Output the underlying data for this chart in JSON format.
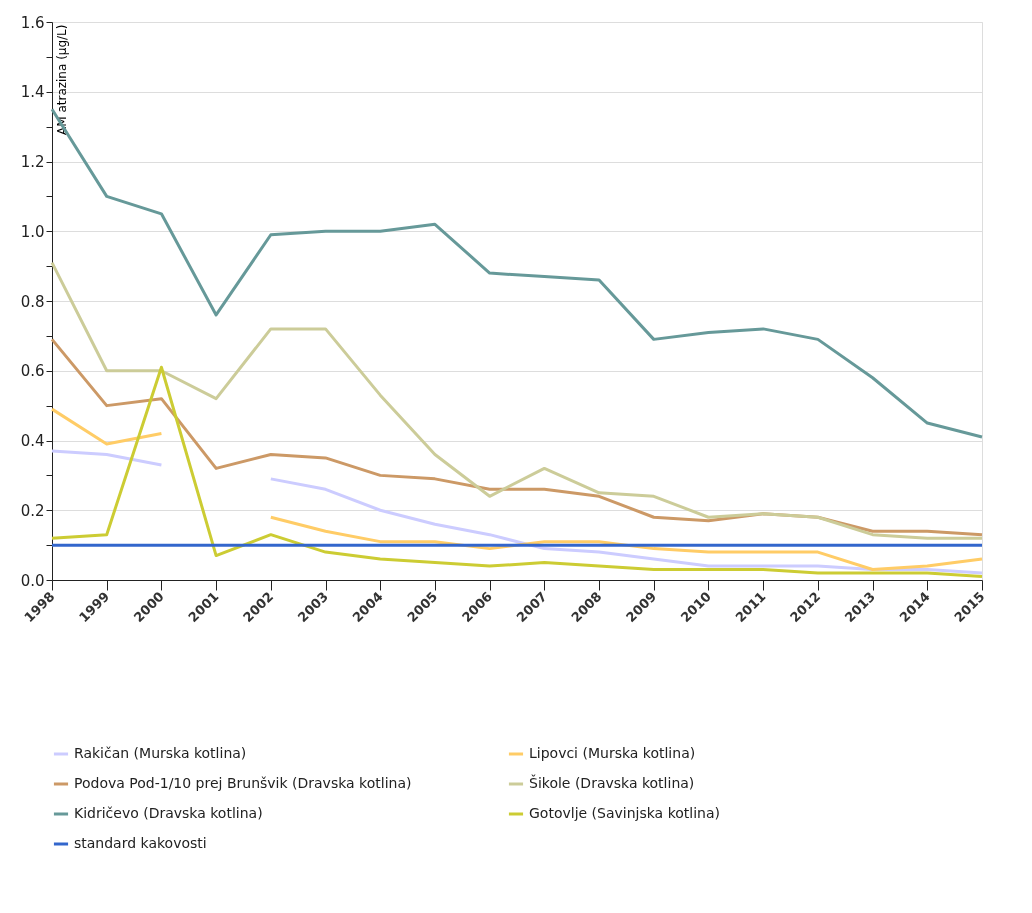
{
  "chart_data": {
    "type": "line",
    "ylabel": "AM atrazina (µg/L)",
    "categories": [
      "1998",
      "1999",
      "2000",
      "2001",
      "2002",
      "2003",
      "2004",
      "2005",
      "2006",
      "2007",
      "2008",
      "2009",
      "2010",
      "2011",
      "2012",
      "2013",
      "2014",
      "2015"
    ],
    "series": [
      {
        "name": "Rakičan (Murska kotlina)",
        "color": "#ccccff",
        "values": [
          0.37,
          0.36,
          0.33,
          null,
          0.29,
          0.26,
          0.2,
          0.16,
          0.13,
          0.09,
          0.08,
          0.06,
          0.04,
          0.04,
          0.04,
          0.03,
          0.03,
          0.02
        ]
      },
      {
        "name": "Lipovci (Murska kotlina)",
        "color": "#ffcc66",
        "values": [
          0.49,
          0.39,
          0.42,
          null,
          0.18,
          0.14,
          0.11,
          0.11,
          0.09,
          0.11,
          0.11,
          0.09,
          0.08,
          0.08,
          0.08,
          0.03,
          0.04,
          0.06
        ]
      },
      {
        "name": "Podova Pod-1/10 prej Brunšvik (Dravska kotlina)",
        "color": "#cc9966",
        "values": [
          0.69,
          0.5,
          0.52,
          0.32,
          0.36,
          0.35,
          0.3,
          0.29,
          0.26,
          0.26,
          0.24,
          0.18,
          0.17,
          0.19,
          0.18,
          0.14,
          0.14,
          0.13
        ]
      },
      {
        "name": "Šikole (Dravska kotlina)",
        "color": "#cccc99",
        "values": [
          0.91,
          0.6,
          0.6,
          0.52,
          0.72,
          0.72,
          0.53,
          0.36,
          0.24,
          0.32,
          0.25,
          0.24,
          0.18,
          0.19,
          0.18,
          0.13,
          0.12,
          0.12
        ]
      },
      {
        "name": "Kidričevo (Dravska kotlina)",
        "color": "#669999",
        "values": [
          1.35,
          1.1,
          1.05,
          0.76,
          0.99,
          1.0,
          1.0,
          1.02,
          0.88,
          0.87,
          0.86,
          0.69,
          0.71,
          0.72,
          0.69,
          0.58,
          0.45,
          0.41
        ]
      },
      {
        "name": "Gotovlje (Savinjska kotlina)",
        "color": "#cccc33",
        "values": [
          0.12,
          0.13,
          0.61,
          0.07,
          0.13,
          0.08,
          0.06,
          0.05,
          0.04,
          0.05,
          0.04,
          0.03,
          0.03,
          0.03,
          0.02,
          0.02,
          0.02,
          0.01
        ]
      },
      {
        "name": "standard kakovosti",
        "color": "#3366cc",
        "values": [
          0.1,
          0.1,
          0.1,
          0.1,
          0.1,
          0.1,
          0.1,
          0.1,
          0.1,
          0.1,
          0.1,
          0.1,
          0.1,
          0.1,
          0.1,
          0.1,
          0.1,
          0.1
        ]
      }
    ],
    "ylim": [
      0,
      1.6
    ],
    "yticks": [
      {
        "value": 0,
        "label": "0.0"
      },
      {
        "value": 0.1,
        "label": null
      },
      0.2,
      {
        "value": 0.3,
        "label": null
      },
      0.4,
      {
        "value": 0.5,
        "label": null
      },
      0.6,
      {
        "value": 0.7,
        "label": null
      },
      0.8,
      {
        "value": 0.9,
        "label": null
      },
      {
        "value": 1,
        "label": "1.0"
      },
      {
        "value": 1.1,
        "label": null
      },
      1.2,
      {
        "value": 1.3,
        "label": null
      },
      1.4,
      {
        "value": 1.5,
        "label": null
      },
      1.6
    ],
    "grid": "y",
    "legend": "bottom",
    "marker": "none",
    "line_style": "solid"
  }
}
